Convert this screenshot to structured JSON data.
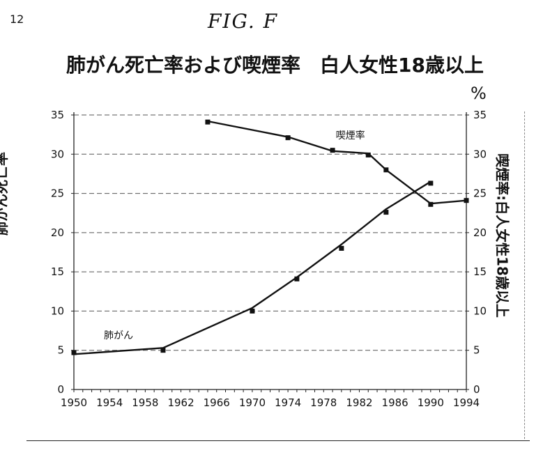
{
  "page_number": "12",
  "figure_label": "FIG. F",
  "percent_symbol": "%",
  "chart_data": {
    "type": "line",
    "title": "肺がん死亡率および喫煙率　白人女性18歳以上",
    "ylabel_left": "肺がん死亡率",
    "ylabel_right": "喫煙率:白人女性18歳以上",
    "xlim": [
      1950,
      1994
    ],
    "ylim": [
      0,
      35
    ],
    "grid": true,
    "x_ticks": [
      "1950",
      "1954",
      "1958",
      "1962",
      "1966",
      "1970",
      "1974",
      "1978",
      "1982",
      "1986",
      "1990",
      "1994"
    ],
    "y_ticks_left": [
      "0",
      "5",
      "10",
      "15",
      "20",
      "25",
      "30",
      "35"
    ],
    "y_ticks_right": [
      "0",
      "5",
      "10",
      "15",
      "20",
      "25",
      "30",
      "35"
    ],
    "series": [
      {
        "name": "肺がん",
        "axis": "left",
        "points": [
          [
            1950,
            4.7
          ],
          [
            1960,
            5.0
          ],
          [
            1970,
            10.0
          ],
          [
            1975,
            14.1
          ],
          [
            1980,
            18.0
          ],
          [
            1985,
            22.6
          ],
          [
            1990,
            26.3
          ]
        ],
        "line": [
          [
            1950,
            4.5
          ],
          [
            1960,
            5.3
          ],
          [
            1970,
            10.4
          ],
          [
            1975,
            14.3
          ],
          [
            1980,
            18.5
          ],
          [
            1985,
            23.0
          ],
          [
            1990,
            26.5
          ]
        ]
      },
      {
        "name": "喫煙率",
        "axis": "right",
        "points": [
          [
            1965,
            34.1
          ],
          [
            1974,
            32.1
          ],
          [
            1979,
            30.5
          ],
          [
            1983,
            29.9
          ],
          [
            1985,
            28.0
          ],
          [
            1990,
            23.6
          ],
          [
            1994,
            24.1
          ]
        ],
        "line": [
          [
            1965,
            34.2
          ],
          [
            1974,
            32.2
          ],
          [
            1979,
            30.4
          ],
          [
            1983,
            30.1
          ],
          [
            1985,
            28.0
          ],
          [
            1990,
            23.7
          ],
          [
            1994,
            24.1
          ]
        ]
      }
    ],
    "annotations": [
      {
        "text": "喫煙率",
        "x": 1981,
        "y": 32.0
      },
      {
        "text": "肺がん",
        "x": 1955,
        "y": 6.5
      }
    ]
  }
}
